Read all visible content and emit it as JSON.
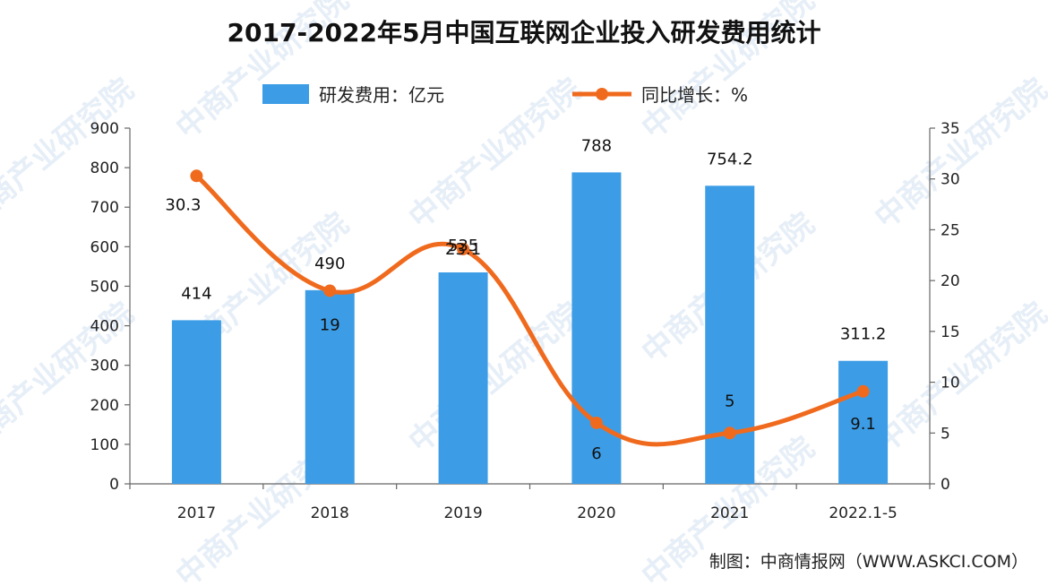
{
  "chart_data": {
    "type": "bar",
    "title": "2017-2022年5月中国互联网企业投入研发费用统计",
    "categories": [
      "2017",
      "2018",
      "2019",
      "2020",
      "2021",
      "2022.1-5"
    ],
    "series": [
      {
        "name": "研发费用：亿元",
        "type": "bar",
        "axis": "left",
        "color": "#3c9de6",
        "values": [
          414,
          490,
          535,
          788,
          754.2,
          311.2
        ],
        "labels": [
          "414",
          "490",
          "535",
          "788",
          "754.2",
          "311.2"
        ]
      },
      {
        "name": "同比增长：%",
        "type": "line",
        "axis": "right",
        "color": "#f06a1e",
        "values": [
          30.3,
          19,
          23.1,
          6,
          5,
          9.1
        ],
        "labels": [
          "30.3",
          "19",
          "23.1",
          "6",
          "5",
          "9.1"
        ]
      }
    ],
    "y_left": {
      "min": 0,
      "max": 900,
      "ticks": [
        "0",
        "100",
        "200",
        "300",
        "400",
        "500",
        "600",
        "700",
        "800",
        "900"
      ]
    },
    "y_right": {
      "min": 0,
      "max": 35,
      "ticks": [
        "0",
        "5",
        "10",
        "15",
        "20",
        "25",
        "30",
        "35"
      ]
    },
    "legend_position": "top",
    "grid": false
  },
  "source": "制图：中商情报网（WWW.ASKCI.COM）",
  "watermark": "中商产业研究院"
}
